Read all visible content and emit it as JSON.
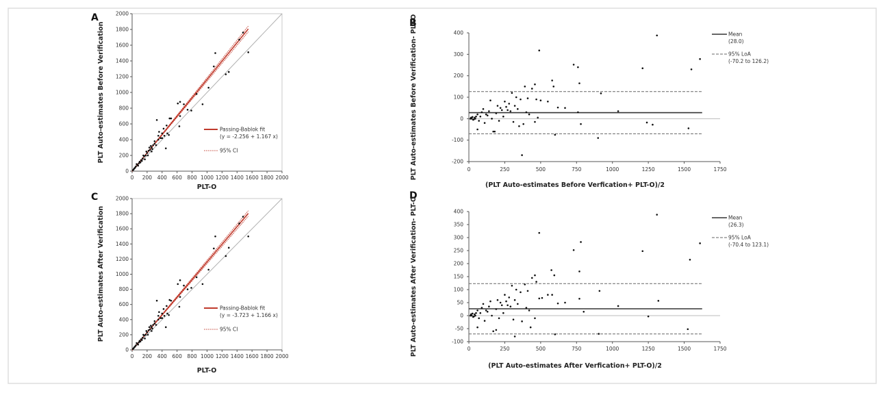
{
  "colors": {
    "fit": "#c0392b",
    "points": "#111111",
    "identity": "#b0b0b0",
    "frame": "#dddddd"
  },
  "chart_data": [
    {
      "panel": "A",
      "type": "scatter",
      "xlabel": "PLT-O",
      "ylabel": "PLT Auto-estimates Before Verification",
      "xlim": [
        0,
        2000
      ],
      "ylim": [
        0,
        2000
      ],
      "xticks": [
        "0",
        "200",
        "400",
        "600",
        "800",
        "1000",
        "1200",
        "1400",
        "1600",
        "1800",
        "2000"
      ],
      "yticks": [
        "0",
        "200",
        "400",
        "600",
        "800",
        "1000",
        "1200",
        "1400",
        "1600",
        "1800",
        "2000"
      ],
      "fit": {
        "intercept": -2.256,
        "slope": 1.167,
        "x_max": 1550
      },
      "legend": {
        "fit_label": "Passing-Bablok fit",
        "fit_eq": "(y = -2.256 + 1.167 x)",
        "ci_label": "95% CI"
      },
      "points": [
        [
          1480,
          1760
        ],
        [
          1430,
          1670
        ],
        [
          1110,
          1500
        ],
        [
          1090,
          1330
        ],
        [
          1550,
          1510
        ],
        [
          1290,
          1260
        ],
        [
          1250,
          1230
        ],
        [
          1020,
          1060
        ],
        [
          940,
          850
        ],
        [
          860,
          980
        ],
        [
          790,
          770
        ],
        [
          740,
          780
        ],
        [
          640,
          880
        ],
        [
          610,
          860
        ],
        [
          690,
          850
        ],
        [
          640,
          700
        ],
        [
          630,
          570
        ],
        [
          520,
          670
        ],
        [
          500,
          670
        ],
        [
          330,
          650
        ],
        [
          450,
          290
        ],
        [
          470,
          480
        ],
        [
          490,
          460
        ],
        [
          420,
          540
        ],
        [
          460,
          580
        ],
        [
          400,
          480
        ],
        [
          380,
          420
        ],
        [
          350,
          400
        ],
        [
          300,
          350
        ],
        [
          280,
          330
        ],
        [
          260,
          300
        ],
        [
          240,
          270
        ],
        [
          220,
          260
        ],
        [
          200,
          230
        ],
        [
          180,
          200
        ],
        [
          160,
          190
        ],
        [
          140,
          160
        ],
        [
          120,
          140
        ],
        [
          100,
          120
        ],
        [
          90,
          100
        ],
        [
          70,
          80
        ],
        [
          50,
          60
        ],
        [
          40,
          45
        ],
        [
          30,
          35
        ],
        [
          20,
          22
        ],
        [
          10,
          12
        ],
        [
          250,
          320
        ],
        [
          270,
          280
        ],
        [
          320,
          330
        ],
        [
          230,
          300
        ],
        [
          150,
          200
        ],
        [
          110,
          110
        ],
        [
          190,
          250
        ],
        [
          210,
          200
        ],
        [
          300,
          380
        ],
        [
          350,
          450
        ],
        [
          400,
          420
        ],
        [
          60,
          90
        ],
        [
          80,
          70
        ],
        [
          130,
          130
        ],
        [
          170,
          150
        ],
        [
          260,
          250
        ],
        [
          360,
          500
        ],
        [
          430,
          450
        ]
      ]
    },
    {
      "panel": "B",
      "type": "scatter",
      "xlabel": "(PLT Auto-estimates Before Verfication+ PLT-O)/2",
      "ylabel": "PLT Auto-estimates Before Verification- PLT-O",
      "xlim": [
        0,
        1750
      ],
      "ylim": [
        -200,
        400
      ],
      "xticks": [
        "0",
        "250",
        "500",
        "750",
        "1000",
        "1250",
        "1500",
        "1750"
      ],
      "yticks": [
        "-200",
        "-100",
        "0",
        "100",
        "200",
        "300",
        "400"
      ],
      "mean": 28.0,
      "loa": [
        -70.2,
        126.2
      ],
      "legend": {
        "mean_label": "Mean",
        "mean_value": "(28.0)",
        "loa_label": "95% LoA",
        "loa_value": "(-70.2 to 126.2)"
      },
      "points": [
        [
          1310,
          388
        ],
        [
          490,
          318
        ],
        [
          1610,
          278
        ],
        [
          1550,
          230
        ],
        [
          1210,
          235
        ],
        [
          730,
          252
        ],
        [
          760,
          240
        ],
        [
          770,
          165
        ],
        [
          580,
          178
        ],
        [
          590,
          150
        ],
        [
          920,
          118
        ],
        [
          1040,
          35
        ],
        [
          1240,
          -18
        ],
        [
          1280,
          -28
        ],
        [
          1530,
          -45
        ],
        [
          780,
          -25
        ],
        [
          600,
          -75
        ],
        [
          900,
          -90
        ],
        [
          370,
          -170
        ],
        [
          460,
          160
        ],
        [
          390,
          150
        ],
        [
          620,
          52
        ],
        [
          670,
          50
        ],
        [
          550,
          80
        ],
        [
          500,
          85
        ],
        [
          470,
          90
        ],
        [
          440,
          140
        ],
        [
          300,
          120
        ],
        [
          330,
          100
        ],
        [
          350,
          -35
        ],
        [
          380,
          -25
        ],
        [
          460,
          -15
        ],
        [
          480,
          5
        ],
        [
          760,
          30
        ],
        [
          170,
          -60
        ],
        [
          180,
          -60
        ],
        [
          60,
          -50
        ],
        [
          150,
          85
        ],
        [
          100,
          45
        ],
        [
          200,
          60
        ],
        [
          250,
          80
        ],
        [
          280,
          70
        ],
        [
          230,
          40
        ],
        [
          270,
          40
        ],
        [
          320,
          60
        ],
        [
          400,
          30
        ],
        [
          420,
          20
        ],
        [
          120,
          20
        ],
        [
          80,
          10
        ],
        [
          40,
          5
        ],
        [
          20,
          0
        ],
        [
          30,
          -5
        ],
        [
          50,
          10
        ],
        [
          10,
          0
        ],
        [
          25,
          8
        ],
        [
          35,
          -3
        ],
        [
          15,
          5
        ],
        [
          45,
          0
        ],
        [
          60,
          20
        ],
        [
          70,
          -10
        ],
        [
          90,
          30
        ],
        [
          110,
          -20
        ],
        [
          130,
          15
        ],
        [
          140,
          35
        ],
        [
          160,
          0
        ],
        [
          190,
          25
        ],
        [
          210,
          -10
        ],
        [
          220,
          50
        ],
        [
          240,
          10
        ],
        [
          260,
          55
        ],
        [
          290,
          35
        ],
        [
          310,
          -15
        ],
        [
          340,
          45
        ],
        [
          360,
          90
        ],
        [
          410,
          95
        ]
      ]
    },
    {
      "panel": "C",
      "type": "scatter",
      "xlabel": "PLT-O",
      "ylabel": "PLT Auto-estimates After Verification",
      "xlim": [
        0,
        2000
      ],
      "ylim": [
        0,
        2000
      ],
      "xticks": [
        "0",
        "200",
        "400",
        "600",
        "800",
        "1000",
        "1200",
        "1400",
        "1600",
        "1800",
        "2000"
      ],
      "yticks": [
        "0",
        "200",
        "400",
        "600",
        "800",
        "1000",
        "1200",
        "1400",
        "1600",
        "1800",
        "2000"
      ],
      "fit": {
        "intercept": -3.723,
        "slope": 1.166,
        "x_max": 1550
      },
      "legend": {
        "fit_label": "Passing-Bablok fit",
        "fit_eq": "(y = -3.723 + 1.166 x)",
        "ci_label": "95% CI"
      },
      "points": [
        [
          1480,
          1760
        ],
        [
          1430,
          1670
        ],
        [
          1110,
          1500
        ],
        [
          1090,
          1340
        ],
        [
          1550,
          1500
        ],
        [
          1290,
          1350
        ],
        [
          1250,
          1240
        ],
        [
          1020,
          1060
        ],
        [
          940,
          870
        ],
        [
          860,
          960
        ],
        [
          790,
          820
        ],
        [
          740,
          800
        ],
        [
          640,
          920
        ],
        [
          610,
          870
        ],
        [
          690,
          850
        ],
        [
          640,
          700
        ],
        [
          630,
          570
        ],
        [
          520,
          650
        ],
        [
          500,
          660
        ],
        [
          330,
          650
        ],
        [
          450,
          300
        ],
        [
          470,
          480
        ],
        [
          490,
          460
        ],
        [
          420,
          540
        ],
        [
          460,
          580
        ],
        [
          400,
          480
        ],
        [
          380,
          420
        ],
        [
          350,
          400
        ],
        [
          300,
          350
        ],
        [
          280,
          330
        ],
        [
          260,
          300
        ],
        [
          240,
          270
        ],
        [
          220,
          260
        ],
        [
          200,
          230
        ],
        [
          180,
          200
        ],
        [
          160,
          190
        ],
        [
          140,
          160
        ],
        [
          120,
          140
        ],
        [
          100,
          120
        ],
        [
          90,
          100
        ],
        [
          70,
          80
        ],
        [
          50,
          60
        ],
        [
          40,
          45
        ],
        [
          30,
          35
        ],
        [
          20,
          22
        ],
        [
          10,
          12
        ],
        [
          250,
          320
        ],
        [
          270,
          280
        ],
        [
          320,
          330
        ],
        [
          230,
          300
        ],
        [
          150,
          200
        ],
        [
          110,
          110
        ],
        [
          190,
          250
        ],
        [
          210,
          200
        ],
        [
          300,
          380
        ],
        [
          350,
          450
        ],
        [
          400,
          420
        ],
        [
          60,
          90
        ],
        [
          80,
          70
        ],
        [
          130,
          130
        ],
        [
          170,
          150
        ],
        [
          260,
          250
        ],
        [
          360,
          500
        ],
        [
          430,
          450
        ]
      ]
    },
    {
      "panel": "D",
      "type": "scatter",
      "xlabel": "(PLT Auto-estimates After Verfication+ PLT-O)/2",
      "ylabel": "PLT Auto-estimates After Verification- PLT-O",
      "xlim": [
        0,
        1750
      ],
      "ylim": [
        -100,
        400
      ],
      "xticks": [
        "0",
        "250",
        "500",
        "750",
        "1000",
        "1250",
        "1500",
        "1750"
      ],
      "yticks": [
        "-100",
        "-50",
        "0",
        "50",
        "100",
        "150",
        "200",
        "250",
        "300",
        "350",
        "400"
      ],
      "mean": 26.3,
      "loa": [
        -70.4,
        123.1
      ],
      "legend": {
        "mean_label": "Mean",
        "mean_value": "(26.3)",
        "loa_label": "95% LoA",
        "loa_value": "(-70.4 to 123.1)"
      },
      "points": [
        [
          1310,
          388
        ],
        [
          490,
          318
        ],
        [
          1610,
          278
        ],
        [
          780,
          283
        ],
        [
          1540,
          215
        ],
        [
          1210,
          248
        ],
        [
          730,
          252
        ],
        [
          770,
          170
        ],
        [
          575,
          175
        ],
        [
          595,
          155
        ],
        [
          460,
          155
        ],
        [
          910,
          95
        ],
        [
          1040,
          37
        ],
        [
          1250,
          -3
        ],
        [
          1320,
          57
        ],
        [
          1525,
          -52
        ],
        [
          800,
          15
        ],
        [
          600,
          -72
        ],
        [
          905,
          -70
        ],
        [
          320,
          -80
        ],
        [
          430,
          -45
        ],
        [
          770,
          65
        ],
        [
          670,
          50
        ],
        [
          620,
          47
        ],
        [
          550,
          80
        ],
        [
          580,
          80
        ],
        [
          510,
          68
        ],
        [
          490,
          66
        ],
        [
          470,
          130
        ],
        [
          440,
          145
        ],
        [
          390,
          120
        ],
        [
          300,
          115
        ],
        [
          330,
          100
        ],
        [
          370,
          -22
        ],
        [
          460,
          -10
        ],
        [
          170,
          -60
        ],
        [
          190,
          -55
        ],
        [
          60,
          -45
        ],
        [
          150,
          55
        ],
        [
          100,
          45
        ],
        [
          200,
          60
        ],
        [
          250,
          80
        ],
        [
          280,
          70
        ],
        [
          230,
          40
        ],
        [
          270,
          40
        ],
        [
          320,
          60
        ],
        [
          400,
          30
        ],
        [
          420,
          20
        ],
        [
          120,
          20
        ],
        [
          80,
          10
        ],
        [
          40,
          5
        ],
        [
          20,
          0
        ],
        [
          30,
          -5
        ],
        [
          50,
          10
        ],
        [
          10,
          0
        ],
        [
          25,
          8
        ],
        [
          35,
          -3
        ],
        [
          15,
          5
        ],
        [
          45,
          0
        ],
        [
          60,
          20
        ],
        [
          70,
          -10
        ],
        [
          90,
          30
        ],
        [
          110,
          -20
        ],
        [
          130,
          15
        ],
        [
          140,
          35
        ],
        [
          160,
          0
        ],
        [
          190,
          25
        ],
        [
          210,
          -10
        ],
        [
          220,
          50
        ],
        [
          240,
          10
        ],
        [
          260,
          55
        ],
        [
          290,
          35
        ],
        [
          310,
          -15
        ],
        [
          340,
          45
        ],
        [
          360,
          90
        ],
        [
          410,
          95
        ]
      ]
    }
  ]
}
